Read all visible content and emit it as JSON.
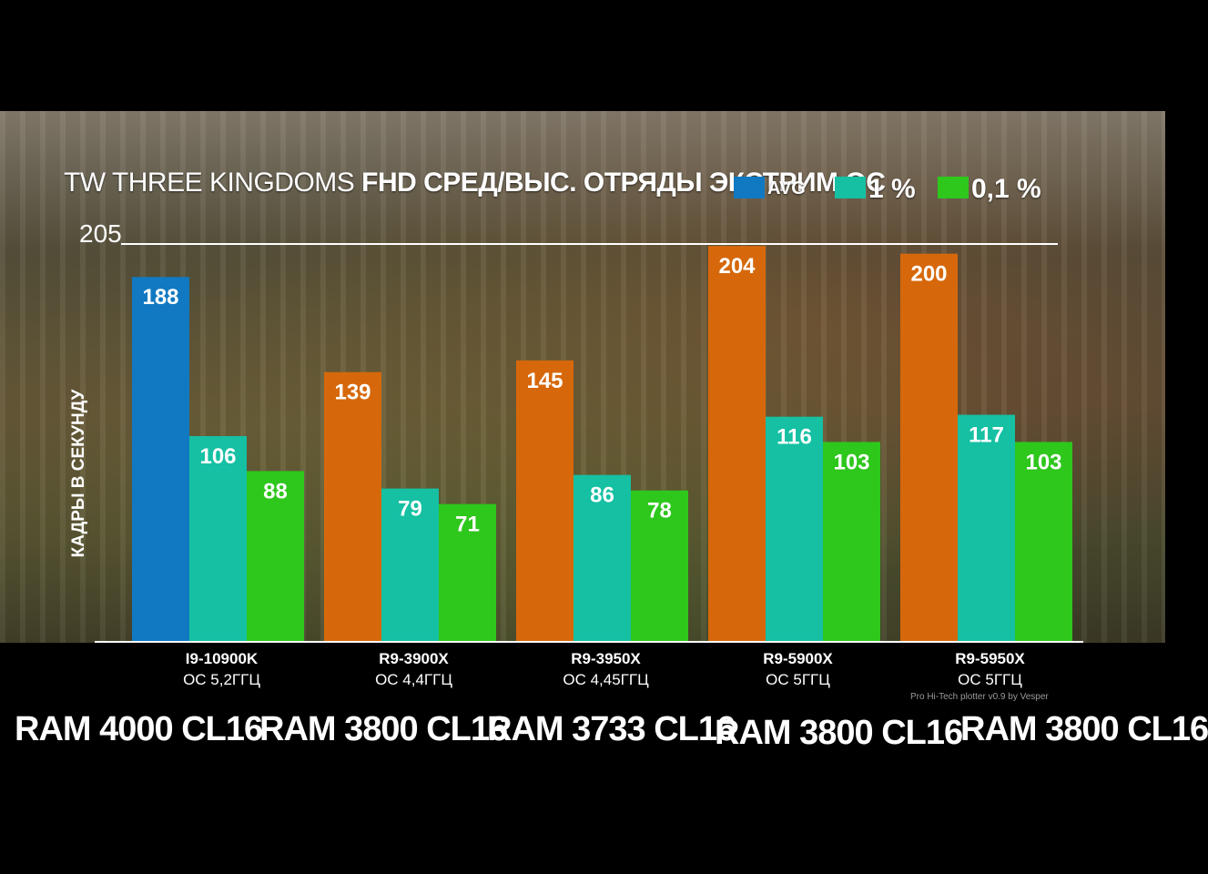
{
  "title_light": "TW THREE KINGDOMS",
  "title_bold": "FHD СРЕД/ВЫС. ОТРЯДЫ ЭКСТРИМ ОС",
  "credit": "Pro Hi-Tech plotter v0.9 by Vesper",
  "chart_data": {
    "type": "bar",
    "ylabel": "КАДРЫ В СЕКУНДУ",
    "ymax_label": "205",
    "ylim": [
      0,
      205
    ],
    "legend_position": "top-right",
    "categories": [
      {
        "cpu": "I9-10900K",
        "oc": "OC 5,2ГГЦ"
      },
      {
        "cpu": "R9-3900X",
        "oc": "OC 4,4ГГЦ"
      },
      {
        "cpu": "R9-3950X",
        "oc": "OC 4,45ГГЦ"
      },
      {
        "cpu": "R9-5900X",
        "oc": "OC 5ГГЦ"
      },
      {
        "cpu": "R9-5950X",
        "oc": "OC 5ГГЦ"
      }
    ],
    "series": [
      {
        "name": "AVG",
        "values": [
          188,
          139,
          145,
          204,
          200
        ],
        "colors": [
          "#1179c1",
          "#d6680b",
          "#d6680b",
          "#d6680b",
          "#d6680b"
        ]
      },
      {
        "name": "1 %",
        "values": [
          106,
          79,
          86,
          116,
          117
        ],
        "colors": [
          "#15c0a3",
          "#15c0a3",
          "#15c0a3",
          "#15c0a3",
          "#15c0a3"
        ]
      },
      {
        "name": "0,1 %",
        "values": [
          88,
          71,
          78,
          103,
          103
        ],
        "colors": [
          "#2ec71c",
          "#2ec71c",
          "#2ec71c",
          "#2ec71c",
          "#2ec71c"
        ]
      }
    ],
    "legend_colors": [
      "#1179c1",
      "#15c0a3",
      "#2ec71c"
    ]
  },
  "ram_labels": [
    "RAM 4000 CL16",
    "RAM 3800 CL16",
    "RAM 3733 CL16",
    "RAM 3800 CL16",
    "RAM 3800 CL16"
  ]
}
